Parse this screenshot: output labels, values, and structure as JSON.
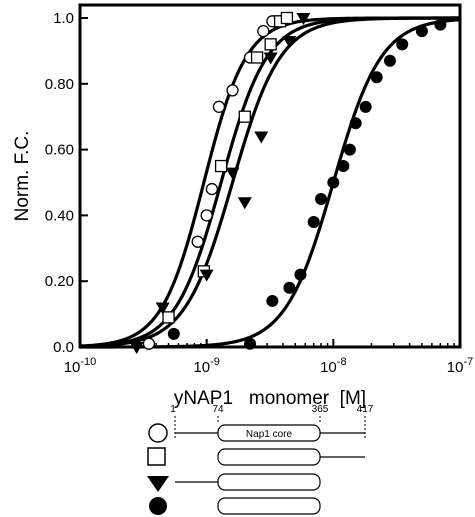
{
  "chart_data": {
    "type": "scatter",
    "xlabel": "yNAP1   monomer  [M]",
    "ylabel": "Norm. F.C.",
    "xscale": "log",
    "xlim": [
      1e-10,
      1e-07
    ],
    "ylim": [
      0,
      1.0
    ],
    "x_ticks": [
      {
        "value": 1e-10,
        "base": "10",
        "exp": "-10"
      },
      {
        "value": 1e-09,
        "base": "10",
        "exp": "-9"
      },
      {
        "value": 1e-08,
        "base": "10",
        "exp": "-8"
      },
      {
        "value": 1e-07,
        "base": "10",
        "exp": "-7"
      }
    ],
    "y_ticks": [
      {
        "value": 0.0,
        "label": "0.0"
      },
      {
        "value": 0.2,
        "label": "0.20"
      },
      {
        "value": 0.4,
        "label": "0.40"
      },
      {
        "value": 0.6,
        "label": "0.60"
      },
      {
        "value": 0.8,
        "label": "0.80"
      },
      {
        "value": 1.0,
        "label": "1.0"
      }
    ],
    "series": [
      {
        "marker": "open-circle",
        "fit": {
          "kd": 9.5e-10,
          "n": 2.6
        },
        "points": [
          [
            3.5e-10,
            0.01
          ],
          [
            8.5e-10,
            0.32
          ],
          [
            1e-09,
            0.4
          ],
          [
            1.1e-09,
            0.48
          ],
          [
            1.25e-09,
            0.73
          ],
          [
            1.6e-09,
            0.78
          ],
          [
            2.2e-09,
            0.88
          ],
          [
            2.8e-09,
            0.96
          ],
          [
            3.3e-09,
            0.99
          ]
        ]
      },
      {
        "marker": "open-square",
        "fit": {
          "kd": 1.3e-09,
          "n": 2.4
        },
        "points": [
          [
            5e-10,
            0.09
          ],
          [
            9.5e-10,
            0.23
          ],
          [
            1.3e-09,
            0.55
          ],
          [
            2e-09,
            0.7
          ],
          [
            2.5e-09,
            0.88
          ],
          [
            3.2e-09,
            0.92
          ],
          [
            3.8e-09,
            0.99
          ],
          [
            4.3e-09,
            1.0
          ]
        ]
      },
      {
        "marker": "filled-triangle",
        "fit": {
          "kd": 1.6e-09,
          "n": 2.3
        },
        "points": [
          [
            2.8e-10,
            0.0
          ],
          [
            4.5e-10,
            0.12
          ],
          [
            1e-09,
            0.22
          ],
          [
            1.6e-09,
            0.53
          ],
          [
            2e-09,
            0.44
          ],
          [
            2.7e-09,
            0.64
          ],
          [
            3.2e-09,
            0.88
          ],
          [
            4.5e-09,
            0.93
          ],
          [
            5.8e-09,
            1.0
          ]
        ]
      },
      {
        "marker": "filled-circle",
        "fit": {
          "kd": 1e-08,
          "n": 2.3
        },
        "points": [
          [
            5.5e-10,
            0.04
          ],
          [
            2.2e-09,
            0.01
          ],
          [
            3.3e-09,
            0.14
          ],
          [
            4.5e-09,
            0.18
          ],
          [
            5.5e-09,
            0.22
          ],
          [
            7e-09,
            0.38
          ],
          [
            8e-09,
            0.45
          ],
          [
            1e-08,
            0.5
          ],
          [
            1.2e-08,
            0.55
          ],
          [
            1.35e-08,
            0.6
          ],
          [
            1.5e-08,
            0.68
          ],
          [
            1.8e-08,
            0.73
          ],
          [
            2.2e-08,
            0.82
          ],
          [
            2.8e-08,
            0.87
          ],
          [
            3.5e-08,
            0.92
          ],
          [
            5e-08,
            0.96
          ],
          [
            7e-08,
            0.98
          ]
        ]
      }
    ]
  },
  "construct_legend": {
    "core_label": "Nap1 core",
    "positions": [
      "1",
      "74",
      "365",
      "417"
    ]
  }
}
